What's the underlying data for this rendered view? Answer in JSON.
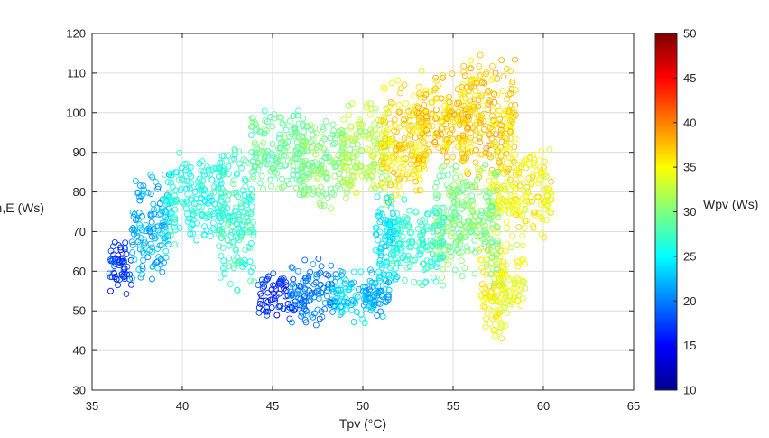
{
  "chart_data": {
    "type": "scatter",
    "marker": "open-circle",
    "xlabel": "Tpv (°C)",
    "ylabel": "Qm,E (Ws)",
    "colorbar_label": "Wpv (Ws)",
    "colormap": "jet",
    "xlim": [
      35,
      65
    ],
    "ylim": [
      30,
      120
    ],
    "clim": [
      10,
      50
    ],
    "xticks": [
      "35",
      "40",
      "45",
      "50",
      "55",
      "60",
      "65"
    ],
    "yticks": [
      "30",
      "40",
      "50",
      "60",
      "70",
      "80",
      "90",
      "100",
      "110",
      "120"
    ],
    "cticks": [
      "10",
      "15",
      "20",
      "25",
      "30",
      "35",
      "40",
      "45",
      "50"
    ],
    "grid": true,
    "clusters": [
      {
        "x": [
          35.9,
          37.2
        ],
        "y": [
          53,
          69
        ],
        "c": 17
      },
      {
        "x": [
          37.2,
          39.3
        ],
        "y": [
          56,
          86
        ],
        "c": 22
      },
      {
        "x": [
          39.0,
          42.3
        ],
        "y": [
          66,
          91
        ],
        "c": 26
      },
      {
        "x": [
          42.0,
          44.0
        ],
        "y": [
          54,
          93
        ],
        "c": 27
      },
      {
        "x": [
          43.8,
          46.8
        ],
        "y": [
          76,
          102
        ],
        "c": 29
      },
      {
        "x": [
          46.5,
          49.0
        ],
        "y": [
          74,
          100
        ],
        "c": 30
      },
      {
        "x": [
          48.8,
          51.5
        ],
        "y": [
          76,
          104
        ],
        "c": 32
      },
      {
        "x": [
          51.0,
          53.5
        ],
        "y": [
          74,
          110
        ],
        "c": 36
      },
      {
        "x": [
          53.0,
          56.0
        ],
        "y": [
          85,
          112
        ],
        "c": 37
      },
      {
        "x": [
          55.5,
          58.5
        ],
        "y": [
          80,
          115
        ],
        "c": 37
      },
      {
        "x": [
          57.0,
          60.5
        ],
        "y": [
          68,
          93
        ],
        "c": 35
      },
      {
        "x": [
          56.5,
          58.0
        ],
        "y": [
          39,
          68
        ],
        "c": 35
      },
      {
        "x": [
          57.5,
          59.0
        ],
        "y": [
          49,
          68
        ],
        "c": 34
      },
      {
        "x": [
          54.0,
          57.5
        ],
        "y": [
          56,
          89
        ],
        "c": 30
      },
      {
        "x": [
          51.5,
          54.5
        ],
        "y": [
          55,
          80
        ],
        "c": 27
      },
      {
        "x": [
          50.7,
          52.0
        ],
        "y": [
          52,
          82
        ],
        "c": 24
      },
      {
        "x": [
          44.2,
          46.5
        ],
        "y": [
          47,
          61
        ],
        "c": 17
      },
      {
        "x": [
          46.0,
          48.5
        ],
        "y": [
          44,
          64
        ],
        "c": 20
      },
      {
        "x": [
          48.3,
          50.5
        ],
        "y": [
          46,
          61
        ],
        "c": 23
      },
      {
        "x": [
          50.0,
          51.5
        ],
        "y": [
          48,
          60
        ],
        "c": 22
      }
    ]
  }
}
